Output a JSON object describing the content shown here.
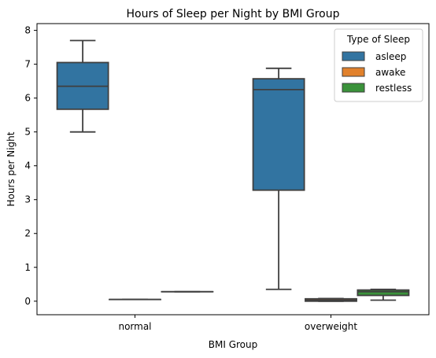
{
  "chart_data": {
    "type": "box",
    "title": "Hours of Sleep per Night by BMI Group",
    "xlabel": "BMI Group",
    "ylabel": "Hours per Night",
    "categories": [
      "normal",
      "overweight"
    ],
    "ylim": [
      -0.4,
      8.2
    ],
    "yticks": [
      "0",
      "1",
      "2",
      "3",
      "4",
      "5",
      "6",
      "7",
      "8"
    ],
    "legend": {
      "title": "Type of Sleep",
      "placement": "top-right"
    },
    "series": [
      {
        "name": "asleep",
        "color": "#3274a1",
        "boxes": [
          {
            "category": "normal",
            "whisker_low": 5.0,
            "q1": 5.67,
            "median": 6.35,
            "q3": 7.05,
            "whisker_high": 7.7
          },
          {
            "category": "overweight",
            "whisker_low": 0.35,
            "q1": 3.28,
            "median": 6.25,
            "q3": 6.57,
            "whisker_high": 6.88
          }
        ]
      },
      {
        "name": "awake",
        "color": "#e1812c",
        "boxes": [
          {
            "category": "normal",
            "whisker_low": 0.05,
            "q1": 0.05,
            "median": 0.05,
            "q3": 0.05,
            "whisker_high": 0.05
          },
          {
            "category": "overweight",
            "whisker_low": 0.0,
            "q1": 0.0,
            "median": 0.03,
            "q3": 0.07,
            "whisker_high": 0.08
          }
        ]
      },
      {
        "name": "restless",
        "color": "#3a923a",
        "boxes": [
          {
            "category": "normal",
            "whisker_low": 0.28,
            "q1": 0.28,
            "median": 0.28,
            "q3": 0.28,
            "whisker_high": 0.28
          },
          {
            "category": "overweight",
            "whisker_low": 0.03,
            "q1": 0.17,
            "median": 0.28,
            "q3": 0.33,
            "whisker_high": 0.35
          }
        ]
      }
    ]
  }
}
